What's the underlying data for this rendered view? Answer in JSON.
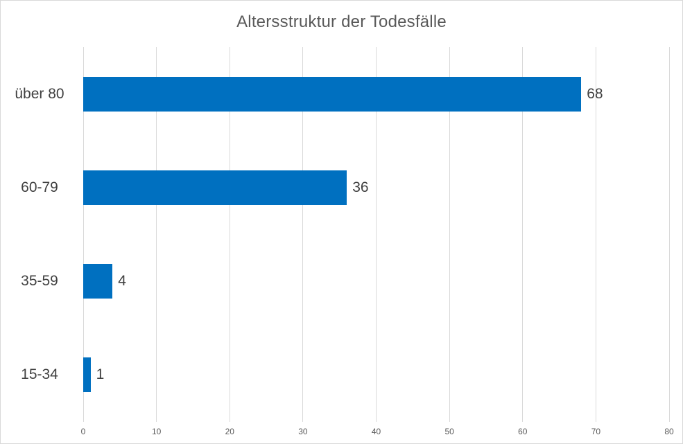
{
  "chart_data": {
    "type": "bar",
    "orientation": "horizontal",
    "title": "Altersstruktur der Todesfälle",
    "categories": [
      "über 80",
      "60-79",
      "35-59",
      "15-34"
    ],
    "values": [
      68,
      36,
      4,
      1
    ],
    "xlabel": "",
    "ylabel": "",
    "xlim": [
      0,
      80
    ],
    "xticks": [
      0,
      10,
      20,
      30,
      40,
      50,
      60,
      70,
      80
    ],
    "grid": "vertical-gridlines-on",
    "legend": "none",
    "value_labels": "outside-end",
    "colors": {
      "bar": "#0070C0",
      "gridline": "#D9D9D9",
      "title": "#595959",
      "category_label": "#404040",
      "value_label": "#404040",
      "tick_label": "#595959",
      "border": "#D9D9D9",
      "background": "#FFFFFF"
    }
  }
}
